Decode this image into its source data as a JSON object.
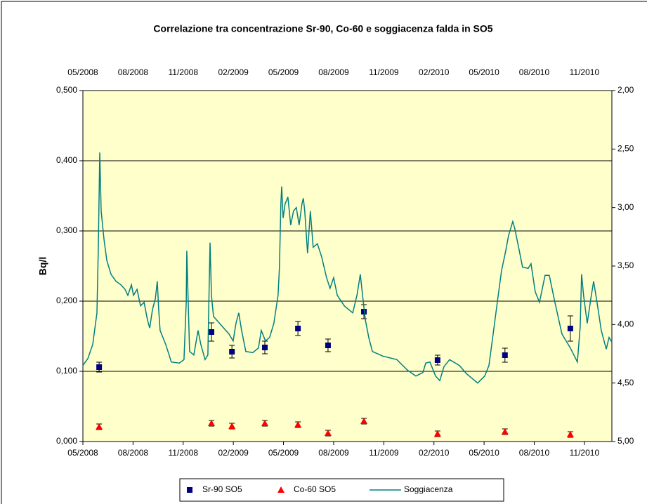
{
  "chart_data": {
    "type": "scatter",
    "title": "Correlazione tra concentrazione Sr-90, Co-60 e soggiacenza falda in SO5",
    "y_label": "Bq/l",
    "xlim": [
      2008.333,
      2010.97
    ],
    "xticks": [
      {
        "value": 2008.333,
        "label": "05/2008"
      },
      {
        "value": 2008.583,
        "label": "08/2008"
      },
      {
        "value": 2008.833,
        "label": "11/2008"
      },
      {
        "value": 2009.083,
        "label": "02/2009"
      },
      {
        "value": 2009.333,
        "label": "05/2009"
      },
      {
        "value": 2009.583,
        "label": "08/2009"
      },
      {
        "value": 2009.833,
        "label": "11/2009"
      },
      {
        "value": 2010.083,
        "label": "02/2010"
      },
      {
        "value": 2010.333,
        "label": "05/2010"
      },
      {
        "value": 2010.583,
        "label": "08/2010"
      },
      {
        "value": 2010.833,
        "label": "11/2010"
      }
    ],
    "ylim": [
      0,
      0.5
    ],
    "yticks": [
      {
        "value": 0,
        "label": "0,000"
      },
      {
        "value": 0.1,
        "label": "0,100"
      },
      {
        "value": 0.2,
        "label": "0,200"
      },
      {
        "value": 0.3,
        "label": "0,300"
      },
      {
        "value": 0.4,
        "label": "0,400"
      },
      {
        "value": 0.5,
        "label": "0,500"
      }
    ],
    "y2lim": [
      5,
      2
    ],
    "y2ticks": [
      {
        "value": 2,
        "label": "2,00"
      },
      {
        "value": 2.5,
        "label": "2,50"
      },
      {
        "value": 3,
        "label": "3,00"
      },
      {
        "value": 3.5,
        "label": "3,50"
      },
      {
        "value": 4,
        "label": "4,00"
      },
      {
        "value": 4.5,
        "label": "4,50"
      },
      {
        "value": 5,
        "label": "5,00"
      }
    ],
    "grid": true,
    "legend": "bottom",
    "series": [
      {
        "name": "Sr-90 SO5",
        "color": "#000080",
        "marker": "square",
        "x": [
          2008.414,
          2008.974,
          2009.076,
          2009.24,
          2009.405,
          2009.555,
          2009.734,
          2010.101,
          2010.437,
          2010.763
        ],
        "values": [
          0.106,
          0.156,
          0.128,
          0.134,
          0.161,
          0.137,
          0.185,
          0.116,
          0.123,
          0.161
        ],
        "errors": [
          0.007,
          0.013,
          0.009,
          0.009,
          0.01,
          0.009,
          0.01,
          0.007,
          0.01,
          0.018
        ]
      },
      {
        "name": "Co-60 SO5",
        "color": "#ff0000",
        "marker": "triangle",
        "x": [
          2008.414,
          2008.974,
          2009.076,
          2009.24,
          2009.405,
          2009.555,
          2009.734,
          2010.101,
          2010.437,
          2010.763
        ],
        "values": [
          0.021,
          0.026,
          0.022,
          0.026,
          0.024,
          0.012,
          0.029,
          0.011,
          0.014,
          0.01
        ],
        "errors": [
          0.004,
          0.004,
          0.004,
          0.004,
          0.004,
          0.004,
          0.004,
          0.004,
          0.004,
          0.004
        ]
      },
      {
        "name": "Soggiacenza",
        "color": "#008080",
        "marker": "line",
        "axis": "y2",
        "x": [
          2008.333,
          2008.358,
          2008.382,
          2008.403,
          2008.41,
          2008.417,
          2008.424,
          2008.438,
          2008.452,
          2008.473,
          2008.498,
          2008.522,
          2008.543,
          2008.557,
          2008.575,
          2008.585,
          2008.603,
          2008.62,
          2008.638,
          2008.655,
          2008.666,
          2008.68,
          2008.694,
          2008.704,
          2008.711,
          2008.718,
          2008.746,
          2008.774,
          2008.813,
          2008.837,
          2008.848,
          2008.851,
          2008.858,
          2008.865,
          2008.886,
          2008.907,
          2008.921,
          2008.942,
          2008.956,
          2008.963,
          2008.967,
          2008.974,
          2008.984,
          2009.019,
          2009.061,
          2009.082,
          2009.096,
          2009.11,
          2009.124,
          2009.145,
          2009.18,
          2009.208,
          2009.222,
          2009.243,
          2009.264,
          2009.285,
          2009.306,
          2009.313,
          2009.32,
          2009.324,
          2009.331,
          2009.341,
          2009.355,
          2009.369,
          2009.383,
          2009.397,
          2009.411,
          2009.425,
          2009.432,
          2009.439,
          2009.453,
          2009.467,
          2009.481,
          2009.502,
          2009.523,
          2009.548,
          2009.565,
          2009.583,
          2009.601,
          2009.636,
          2009.678,
          2009.699,
          2009.716,
          2009.727,
          2009.741,
          2009.758,
          2009.776,
          2009.828,
          2009.898,
          2009.951,
          2009.993,
          2010.028,
          2010.042,
          2010.063,
          2010.091,
          2010.112,
          2010.133,
          2010.161,
          2010.21,
          2010.245,
          2010.301,
          2010.336,
          2010.357,
          2010.378,
          2010.399,
          2010.42,
          2010.441,
          2010.455,
          2010.476,
          2010.486,
          2010.504,
          2010.525,
          2010.553,
          2010.567,
          2010.588,
          2010.609,
          2010.637,
          2010.658,
          2010.686,
          2010.721,
          2010.763,
          2010.798,
          2010.812,
          2010.819,
          2010.829,
          2010.847,
          2010.865,
          2010.879,
          2010.896,
          2010.917,
          2010.942,
          2010.956,
          2010.97
        ],
        "values": [
          4.35,
          4.29,
          4.17,
          3.9,
          3.33,
          2.53,
          3.03,
          3.27,
          3.45,
          3.57,
          3.63,
          3.66,
          3.7,
          3.75,
          3.66,
          3.75,
          3.7,
          3.84,
          3.81,
          3.96,
          4.03,
          3.87,
          3.78,
          3.63,
          3.87,
          4.05,
          4.17,
          4.32,
          4.33,
          4.3,
          3.81,
          3.37,
          3.81,
          4.23,
          4.26,
          4.05,
          4.17,
          4.3,
          4.26,
          3.63,
          3.3,
          3.75,
          3.93,
          4.0,
          4.08,
          4.14,
          3.99,
          3.9,
          4.05,
          4.23,
          4.24,
          4.2,
          4.05,
          4.14,
          4.11,
          3.99,
          3.75,
          3.51,
          2.97,
          2.82,
          3.09,
          2.97,
          2.91,
          3.15,
          3.03,
          3.0,
          3.15,
          2.97,
          2.92,
          3.03,
          3.39,
          3.03,
          3.34,
          3.31,
          3.42,
          3.6,
          3.69,
          3.6,
          3.75,
          3.84,
          3.9,
          3.75,
          3.57,
          3.75,
          3.96,
          4.11,
          4.23,
          4.27,
          4.3,
          4.39,
          4.44,
          4.41,
          4.33,
          4.32,
          4.44,
          4.48,
          4.36,
          4.3,
          4.35,
          4.42,
          4.5,
          4.44,
          4.35,
          4.08,
          3.81,
          3.54,
          3.37,
          3.24,
          3.12,
          3.18,
          3.33,
          3.51,
          3.52,
          3.48,
          3.72,
          3.81,
          3.58,
          3.58,
          3.81,
          4.08,
          4.2,
          4.32,
          4.02,
          3.57,
          3.75,
          3.99,
          3.78,
          3.63,
          3.81,
          4.05,
          4.21,
          4.11,
          4.15
        ]
      }
    ]
  }
}
